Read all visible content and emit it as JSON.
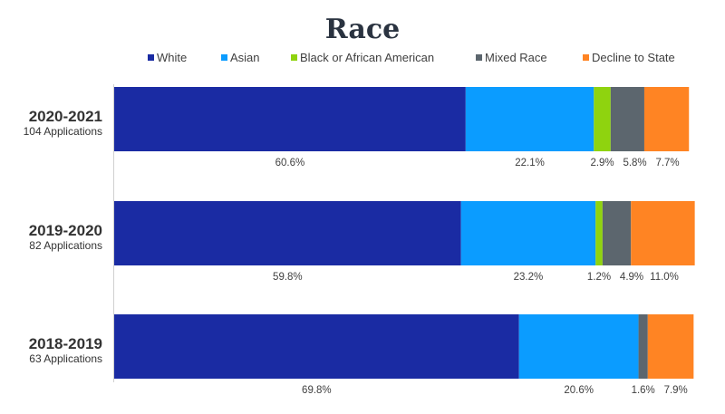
{
  "chart_data": {
    "type": "bar",
    "orientation": "horizontal",
    "stacked": true,
    "title": "Race",
    "categories": [
      "2020-2021",
      "2019-2020",
      "2018-2019"
    ],
    "category_subtitles": [
      "104 Applications",
      "82 Applications",
      "63 Applications"
    ],
    "series": [
      {
        "name": "White",
        "color": "#1a2ba3",
        "values": [
          60.6,
          59.8,
          69.8
        ],
        "labels": [
          "60.6%",
          "59.8%",
          "69.8%"
        ]
      },
      {
        "name": "Asian",
        "color": "#0b9cff",
        "values": [
          22.1,
          23.2,
          20.6
        ],
        "labels": [
          "22.1%",
          "23.2%",
          "20.6%"
        ]
      },
      {
        "name": "Black or African American",
        "color": "#8fd30f",
        "values": [
          2.9,
          1.2,
          0
        ],
        "labels": [
          "2.9%",
          "1.2%",
          ""
        ]
      },
      {
        "name": "Mixed Race",
        "color": "#5c666e",
        "values": [
          5.8,
          4.9,
          1.6
        ],
        "labels": [
          "5.8%",
          "4.9%",
          "1.6%"
        ]
      },
      {
        "name": "Decline to State",
        "color": "#ff8423",
        "values": [
          7.7,
          11.0,
          7.9
        ],
        "labels": [
          "7.7%",
          "11.0%",
          "7.9%"
        ]
      }
    ],
    "xlim": [
      0,
      100
    ],
    "legend_position": "top",
    "grid": false
  }
}
